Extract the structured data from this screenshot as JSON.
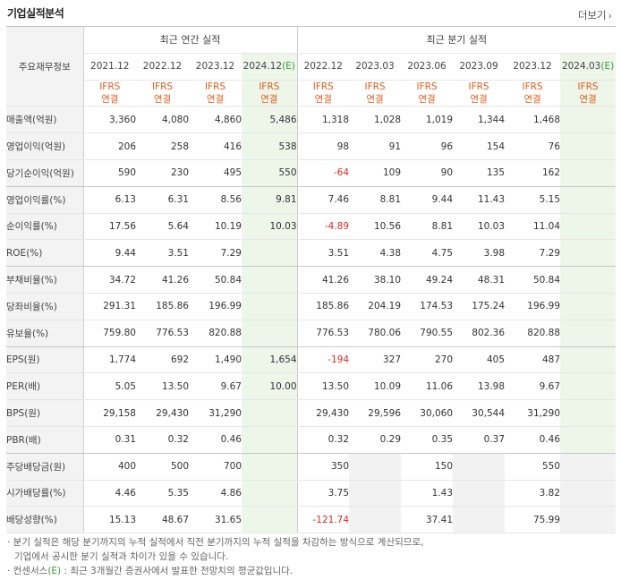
{
  "header": {
    "title": "기업실적분석",
    "more_label": "더보기",
    "more_icon": "chevron-right-icon"
  },
  "table": {
    "row_header_label": "주요재무정보",
    "group_annual": "최근 연간 실적",
    "group_quarterly": "최근 분기 실적",
    "annual_periods": [
      "2021.12",
      "2022.12",
      "2023.12",
      "2024.12"
    ],
    "annual_est_suffix": "(E)",
    "quarter_periods": [
      "2022.12",
      "2023.03",
      "2023.06",
      "2023.09",
      "2023.12",
      "2024.03"
    ],
    "quarter_est_suffix": "(E)",
    "basis_line1": "IFRS",
    "basis_line2": "연결",
    "rows": [
      {
        "label": "매출액(억원)",
        "values": [
          "3,360",
          "4,080",
          "4,860",
          "5,486",
          "1,318",
          "1,028",
          "1,019",
          "1,344",
          "1,468",
          ""
        ]
      },
      {
        "label": "영업이익(억원)",
        "values": [
          "206",
          "258",
          "416",
          "538",
          "98",
          "91",
          "96",
          "154",
          "76",
          ""
        ]
      },
      {
        "label": "당기순이익(억원)",
        "values": [
          "590",
          "230",
          "495",
          "550",
          "-64",
          "109",
          "90",
          "135",
          "162",
          ""
        ]
      },
      {
        "label": "영업이익률(%)",
        "values": [
          "6.13",
          "6.31",
          "8.56",
          "9.81",
          "7.46",
          "8.81",
          "9.44",
          "11.43",
          "5.15",
          ""
        ]
      },
      {
        "label": "순이익률(%)",
        "values": [
          "17.56",
          "5.64",
          "10.19",
          "10.03",
          "-4.89",
          "10.56",
          "8.81",
          "10.03",
          "11.04",
          ""
        ]
      },
      {
        "label": "ROE(%)",
        "values": [
          "9.44",
          "3.51",
          "7.29",
          "",
          "3.51",
          "4.38",
          "4.75",
          "3.98",
          "7.29",
          ""
        ]
      },
      {
        "label": "부채비율(%)",
        "values": [
          "34.72",
          "41.26",
          "50.84",
          "",
          "41.26",
          "38.10",
          "49.24",
          "48.31",
          "50.84",
          ""
        ]
      },
      {
        "label": "당좌비율(%)",
        "values": [
          "291.31",
          "185.86",
          "196.99",
          "",
          "185.86",
          "204.19",
          "174.53",
          "175.24",
          "196.99",
          ""
        ]
      },
      {
        "label": "유보율(%)",
        "values": [
          "759.80",
          "776.53",
          "820.88",
          "",
          "776.53",
          "780.06",
          "790.55",
          "802.36",
          "820.88",
          ""
        ]
      },
      {
        "label": "EPS(원)",
        "values": [
          "1,774",
          "692",
          "1,490",
          "1,654",
          "-194",
          "327",
          "270",
          "405",
          "487",
          ""
        ]
      },
      {
        "label": "PER(배)",
        "values": [
          "5.05",
          "13.50",
          "9.67",
          "10.00",
          "13.50",
          "10.09",
          "11.06",
          "13.98",
          "9.67",
          ""
        ]
      },
      {
        "label": "BPS(원)",
        "values": [
          "29,158",
          "29,430",
          "31,290",
          "",
          "29,430",
          "29,596",
          "30,060",
          "30,544",
          "31,290",
          ""
        ]
      },
      {
        "label": "PBR(배)",
        "values": [
          "0.31",
          "0.32",
          "0.46",
          "",
          "0.32",
          "0.29",
          "0.35",
          "0.37",
          "0.46",
          ""
        ]
      },
      {
        "label": "주당배당금(원)",
        "values": [
          "400",
          "500",
          "700",
          "",
          "350",
          "",
          "150",
          "",
          "550",
          ""
        ]
      },
      {
        "label": "시가배당률(%)",
        "values": [
          "4.46",
          "5.35",
          "4.86",
          "",
          "3.75",
          "",
          "1.43",
          "",
          "3.82",
          ""
        ]
      },
      {
        "label": "배당성향(%)",
        "values": [
          "15.13",
          "48.67",
          "31.65",
          "",
          "-121.74",
          "",
          "37.41",
          "",
          "75.99",
          ""
        ]
      }
    ]
  },
  "notes": {
    "line1": "· 분기 실적은 해당 분기까지의 누적 실적에서 직전 분기까지의 누적 실적을 차감하는 방식으로 계산되므로,",
    "line2": "기업에서 공시한 분기 실적과 차이가 있을 수 있습니다.",
    "line3_pre": "· 컨센서스",
    "line3_e": "(E)",
    "line3_post": " : 최근 3개월간 증권사에서 발표한 전망치의 평균값입니다."
  }
}
